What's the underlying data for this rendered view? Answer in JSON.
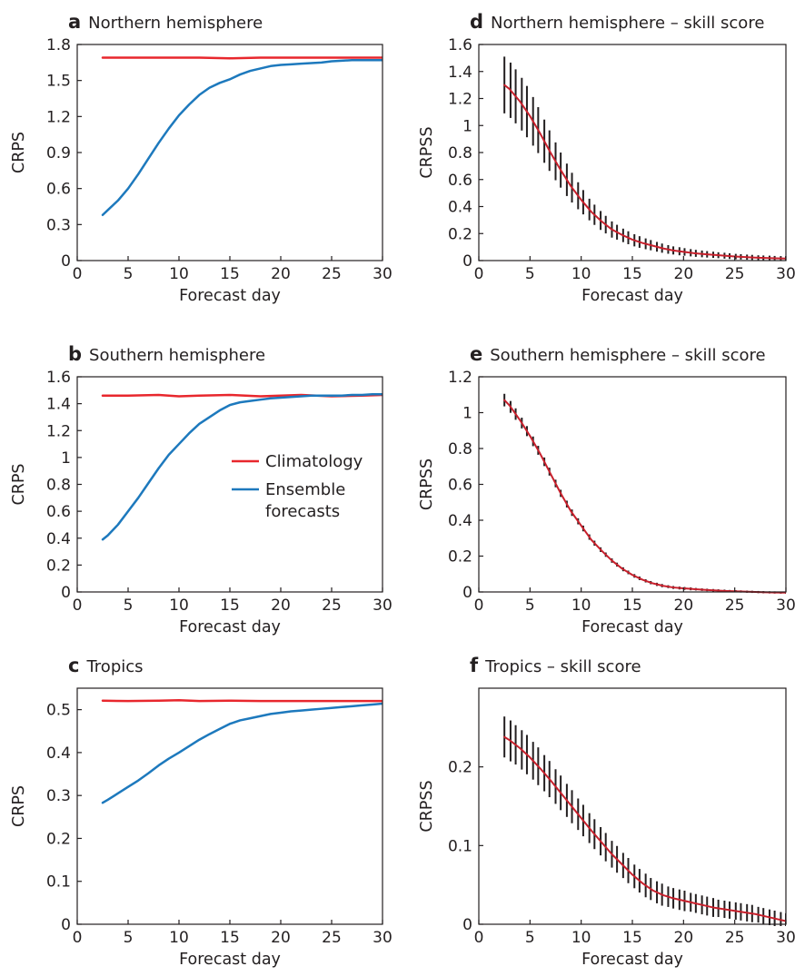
{
  "colors": {
    "climatology": "#e8272d",
    "ensemble": "#1d79bd",
    "skill": "#c8202c",
    "error_bar": "#231f20"
  },
  "legend": {
    "panel": "b",
    "entries": [
      {
        "label": "Climatology",
        "color": "#e8272d"
      },
      {
        "label": "Ensemble forecasts",
        "color": "#1d79bd"
      }
    ]
  },
  "chart_data": [
    {
      "id": "a",
      "letter": "a",
      "title": "Northern hemisphere",
      "type": "line",
      "xlabel": "Forecast day",
      "ylabel": "CRPS",
      "xlim": [
        0,
        30
      ],
      "ylim": [
        0,
        1.8
      ],
      "xticks": [
        "0",
        "5",
        "10",
        "15",
        "20",
        "25",
        "30"
      ],
      "yticks": [
        "0",
        "0.3",
        "0.6",
        "0.9",
        "1.2",
        "1.5",
        "1.8"
      ],
      "series": [
        {
          "name": "Climatology",
          "color": "#e8272d",
          "x": [
            2.5,
            5,
            8,
            10,
            12,
            15,
            18,
            20,
            25,
            30
          ],
          "y": [
            1.69,
            1.69,
            1.69,
            1.69,
            1.69,
            1.685,
            1.69,
            1.69,
            1.69,
            1.69
          ]
        },
        {
          "name": "Ensemble forecasts",
          "color": "#1d79bd",
          "x": [
            2.5,
            3,
            4,
            5,
            6,
            7,
            8,
            9,
            10,
            11,
            12,
            13,
            14,
            15,
            16,
            17,
            18,
            19,
            20,
            21,
            22,
            23,
            24,
            25,
            26,
            27,
            28,
            29,
            30
          ],
          "y": [
            0.38,
            0.42,
            0.5,
            0.6,
            0.72,
            0.85,
            0.98,
            1.1,
            1.21,
            1.3,
            1.38,
            1.44,
            1.48,
            1.51,
            1.55,
            1.58,
            1.6,
            1.62,
            1.63,
            1.635,
            1.64,
            1.645,
            1.65,
            1.66,
            1.665,
            1.67,
            1.67,
            1.67,
            1.67
          ]
        }
      ]
    },
    {
      "id": "b",
      "letter": "b",
      "title": "Southern hemisphere",
      "type": "line",
      "xlabel": "Forecast day",
      "ylabel": "CRPS",
      "xlim": [
        0,
        30
      ],
      "ylim": [
        0,
        1.6
      ],
      "xticks": [
        "0",
        "5",
        "10",
        "15",
        "20",
        "25",
        "30"
      ],
      "yticks": [
        "0",
        "0.2",
        "0.4",
        "0.6",
        "0.8",
        "1",
        "1.2",
        "1.4",
        "1.6"
      ],
      "series": [
        {
          "name": "Climatology",
          "color": "#e8272d",
          "x": [
            2.5,
            5,
            8,
            10,
            12,
            15,
            18,
            20,
            22,
            25,
            28,
            30
          ],
          "y": [
            1.46,
            1.46,
            1.465,
            1.455,
            1.46,
            1.465,
            1.455,
            1.46,
            1.465,
            1.455,
            1.46,
            1.465
          ]
        },
        {
          "name": "Ensemble forecasts",
          "color": "#1d79bd",
          "x": [
            2.5,
            3,
            4,
            5,
            6,
            7,
            8,
            9,
            10,
            11,
            12,
            13,
            14,
            15,
            16,
            17,
            18,
            19,
            20,
            21,
            22,
            23,
            24,
            25,
            26,
            27,
            28,
            29,
            30
          ],
          "y": [
            0.39,
            0.42,
            0.5,
            0.6,
            0.7,
            0.81,
            0.92,
            1.02,
            1.1,
            1.18,
            1.25,
            1.3,
            1.35,
            1.39,
            1.41,
            1.42,
            1.43,
            1.44,
            1.445,
            1.45,
            1.455,
            1.46,
            1.46,
            1.46,
            1.46,
            1.465,
            1.465,
            1.47,
            1.47
          ]
        }
      ]
    },
    {
      "id": "c",
      "letter": "c",
      "title": "Tropics",
      "type": "line",
      "xlabel": "Forecast day",
      "ylabel": "CRPS",
      "xlim": [
        0,
        30
      ],
      "ylim": [
        0,
        0.55
      ],
      "xticks": [
        "0",
        "5",
        "10",
        "15",
        "20",
        "25",
        "30"
      ],
      "yticks": [
        "0",
        "0.1",
        "0.2",
        "0.3",
        "0.4",
        "0.5"
      ],
      "series": [
        {
          "name": "Climatology",
          "color": "#e8272d",
          "x": [
            2.5,
            5,
            8,
            10,
            12,
            15,
            18,
            20,
            25,
            30
          ],
          "y": [
            0.521,
            0.52,
            0.521,
            0.522,
            0.52,
            0.521,
            0.52,
            0.52,
            0.52,
            0.52
          ]
        },
        {
          "name": "Ensemble forecasts",
          "color": "#1d79bd",
          "x": [
            2.5,
            3,
            4,
            5,
            6,
            7,
            8,
            9,
            10,
            11,
            12,
            13,
            14,
            15,
            16,
            17,
            18,
            19,
            20,
            21,
            22,
            23,
            24,
            25,
            26,
            27,
            28,
            29,
            30
          ],
          "y": [
            0.283,
            0.29,
            0.305,
            0.32,
            0.335,
            0.352,
            0.37,
            0.386,
            0.4,
            0.415,
            0.43,
            0.443,
            0.455,
            0.467,
            0.475,
            0.48,
            0.485,
            0.49,
            0.493,
            0.496,
            0.498,
            0.5,
            0.502,
            0.504,
            0.506,
            0.508,
            0.51,
            0.512,
            0.514
          ]
        }
      ]
    },
    {
      "id": "d",
      "letter": "d",
      "title": "Northern hemisphere – skill score",
      "type": "line",
      "xlabel": "Forecast day",
      "ylabel": "CRPSS",
      "xlim": [
        0,
        30
      ],
      "ylim": [
        0,
        1.6
      ],
      "xticks": [
        "0",
        "5",
        "10",
        "15",
        "20",
        "25",
        "30"
      ],
      "yticks": [
        "0",
        "0.2",
        "0.4",
        "0.6",
        "0.8",
        "1",
        "1.2",
        "1.4",
        "1.6"
      ],
      "series": [
        {
          "name": "",
          "color": "#c8202c",
          "x": [
            2.5,
            3,
            4,
            5,
            6,
            7,
            8,
            9,
            10,
            11,
            12,
            13,
            14,
            15,
            16,
            17,
            18,
            19,
            20,
            21,
            22,
            23,
            24,
            25,
            26,
            27,
            28,
            29,
            30
          ],
          "y": [
            1.3,
            1.27,
            1.18,
            1.07,
            0.94,
            0.8,
            0.67,
            0.55,
            0.45,
            0.36,
            0.29,
            0.23,
            0.19,
            0.155,
            0.13,
            0.11,
            0.09,
            0.075,
            0.065,
            0.055,
            0.048,
            0.042,
            0.036,
            0.03,
            0.026,
            0.022,
            0.019,
            0.017,
            0.015
          ]
        }
      ],
      "error_bars": {
        "x": [
          2.5,
          3.1,
          3.6,
          4.2,
          4.7,
          5.3,
          5.8,
          6.4,
          6.9,
          7.5,
          8.0,
          8.6,
          9.1,
          9.7,
          10.2,
          10.8,
          11.3,
          11.9,
          12.4,
          13.0,
          13.5,
          14.1,
          14.6,
          15.2,
          15.7,
          16.3,
          16.8,
          17.4,
          17.9,
          18.5,
          19.0,
          19.6,
          20.1,
          20.7,
          21.2,
          21.8,
          22.3,
          22.9,
          23.4,
          24.0,
          24.5,
          25.1,
          25.6,
          26.2,
          26.7,
          27.3,
          27.8,
          28.4,
          28.9,
          29.5,
          30.0
        ],
        "half_width": [
          0.21,
          0.205,
          0.2,
          0.195,
          0.19,
          0.18,
          0.17,
          0.16,
          0.15,
          0.14,
          0.13,
          0.12,
          0.11,
          0.1,
          0.09,
          0.08,
          0.075,
          0.07,
          0.065,
          0.06,
          0.055,
          0.05,
          0.048,
          0.045,
          0.043,
          0.04,
          0.038,
          0.036,
          0.034,
          0.032,
          0.03,
          0.03,
          0.028,
          0.027,
          0.026,
          0.025,
          0.024,
          0.023,
          0.022,
          0.022,
          0.021,
          0.02,
          0.02,
          0.019,
          0.019,
          0.018,
          0.018,
          0.018,
          0.017,
          0.017,
          0.017
        ]
      }
    },
    {
      "id": "e",
      "letter": "e",
      "title": "Southern hemisphere – skill score",
      "type": "line",
      "xlabel": "Forecast day",
      "ylabel": "CRPSS",
      "xlim": [
        0,
        30
      ],
      "ylim": [
        0,
        1.2
      ],
      "xticks": [
        "0",
        "5",
        "10",
        "15",
        "20",
        "25",
        "30"
      ],
      "yticks": [
        "0",
        "0.2",
        "0.4",
        "0.6",
        "0.8",
        "1",
        "1.2"
      ],
      "series": [
        {
          "name": "",
          "color": "#c8202c",
          "x": [
            2.5,
            3,
            4,
            5,
            6,
            7,
            8,
            9,
            10,
            11,
            12,
            13,
            14,
            15,
            16,
            17,
            18,
            19,
            20,
            21,
            22,
            23,
            24,
            25,
            26,
            27,
            28,
            29,
            30
          ],
          "y": [
            1.07,
            1.04,
            0.96,
            0.87,
            0.77,
            0.66,
            0.55,
            0.45,
            0.37,
            0.29,
            0.23,
            0.175,
            0.13,
            0.095,
            0.068,
            0.048,
            0.034,
            0.025,
            0.02,
            0.016,
            0.012,
            0.009,
            0.006,
            0.004,
            0.002,
            0.0,
            -0.002,
            -0.003,
            -0.004
          ]
        }
      ],
      "error_bars": {
        "x": [
          2.5,
          3.1,
          3.6,
          4.2,
          4.7,
          5.3,
          5.8,
          6.4,
          6.9,
          7.5,
          8.0,
          8.6,
          9.1,
          9.7,
          10.2,
          10.8,
          11.3,
          11.9,
          12.4,
          13.0,
          13.5,
          14.1,
          14.6,
          15.2,
          15.7,
          16.3,
          16.8,
          17.4,
          17.9,
          18.5,
          19.0,
          19.6,
          20.1,
          20.7,
          21.2,
          21.8,
          22.3,
          22.9,
          23.4,
          24.0,
          24.5,
          25.1,
          25.6,
          26.2,
          26.7,
          27.3,
          27.8,
          28.4,
          28.9,
          29.5,
          30.0
        ],
        "half_width": [
          0.035,
          0.033,
          0.032,
          0.03,
          0.028,
          0.027,
          0.025,
          0.024,
          0.022,
          0.021,
          0.02,
          0.019,
          0.018,
          0.017,
          0.016,
          0.015,
          0.014,
          0.013,
          0.012,
          0.012,
          0.011,
          0.011,
          0.01,
          0.01,
          0.01,
          0.009,
          0.009,
          0.009,
          0.009,
          0.008,
          0.008,
          0.008,
          0.008,
          0.008,
          0.007,
          0.007,
          0.007,
          0.007,
          0.007,
          0.007,
          0.006,
          0.006,
          0.006,
          0.006,
          0.006,
          0.006,
          0.006,
          0.006,
          0.006,
          0.006,
          0.006
        ]
      }
    },
    {
      "id": "f",
      "letter": "f",
      "title": "Tropics – skill score",
      "type": "line",
      "xlabel": "Forecast day",
      "ylabel": "CRPSS",
      "xlim": [
        0,
        30
      ],
      "ylim": [
        0,
        0.3
      ],
      "xticks": [
        "0",
        "5",
        "10",
        "15",
        "20",
        "25",
        "30"
      ],
      "yticks": [
        "0",
        "0.1",
        "0.2"
      ],
      "ytick_values": [
        0,
        0.1,
        0.2
      ],
      "series": [
        {
          "name": "",
          "color": "#c8202c",
          "x": [
            2.5,
            3,
            4,
            5,
            6,
            7,
            8,
            9,
            10,
            11,
            12,
            13,
            14,
            15,
            16,
            17,
            18,
            19,
            20,
            21,
            22,
            23,
            24,
            25,
            26,
            27,
            28,
            29,
            30
          ],
          "y": [
            0.238,
            0.234,
            0.224,
            0.212,
            0.198,
            0.183,
            0.167,
            0.151,
            0.135,
            0.119,
            0.104,
            0.089,
            0.076,
            0.063,
            0.052,
            0.043,
            0.037,
            0.033,
            0.03,
            0.027,
            0.024,
            0.021,
            0.019,
            0.017,
            0.015,
            0.013,
            0.01,
            0.007,
            0.004
          ]
        }
      ],
      "error_bars": {
        "x": [
          2.5,
          3.1,
          3.6,
          4.2,
          4.7,
          5.3,
          5.8,
          6.4,
          6.9,
          7.5,
          8.0,
          8.6,
          9.1,
          9.7,
          10.2,
          10.8,
          11.3,
          11.9,
          12.4,
          13.0,
          13.5,
          14.1,
          14.6,
          15.2,
          15.7,
          16.3,
          16.8,
          17.4,
          17.9,
          18.5,
          19.0,
          19.6,
          20.1,
          20.7,
          21.2,
          21.8,
          22.3,
          22.9,
          23.4,
          24.0,
          24.5,
          25.1,
          25.6,
          26.2,
          26.7,
          27.3,
          27.8,
          28.4,
          28.9,
          29.5,
          30.0
        ],
        "half_width": [
          0.026,
          0.026,
          0.025,
          0.025,
          0.025,
          0.024,
          0.024,
          0.023,
          0.023,
          0.022,
          0.022,
          0.021,
          0.021,
          0.02,
          0.02,
          0.019,
          0.019,
          0.018,
          0.018,
          0.017,
          0.017,
          0.016,
          0.016,
          0.015,
          0.015,
          0.015,
          0.014,
          0.014,
          0.014,
          0.013,
          0.013,
          0.013,
          0.013,
          0.012,
          0.012,
          0.012,
          0.012,
          0.012,
          0.011,
          0.011,
          0.011,
          0.011,
          0.011,
          0.011,
          0.011,
          0.01,
          0.01,
          0.01,
          0.01,
          0.01,
          0.01
        ]
      }
    }
  ]
}
